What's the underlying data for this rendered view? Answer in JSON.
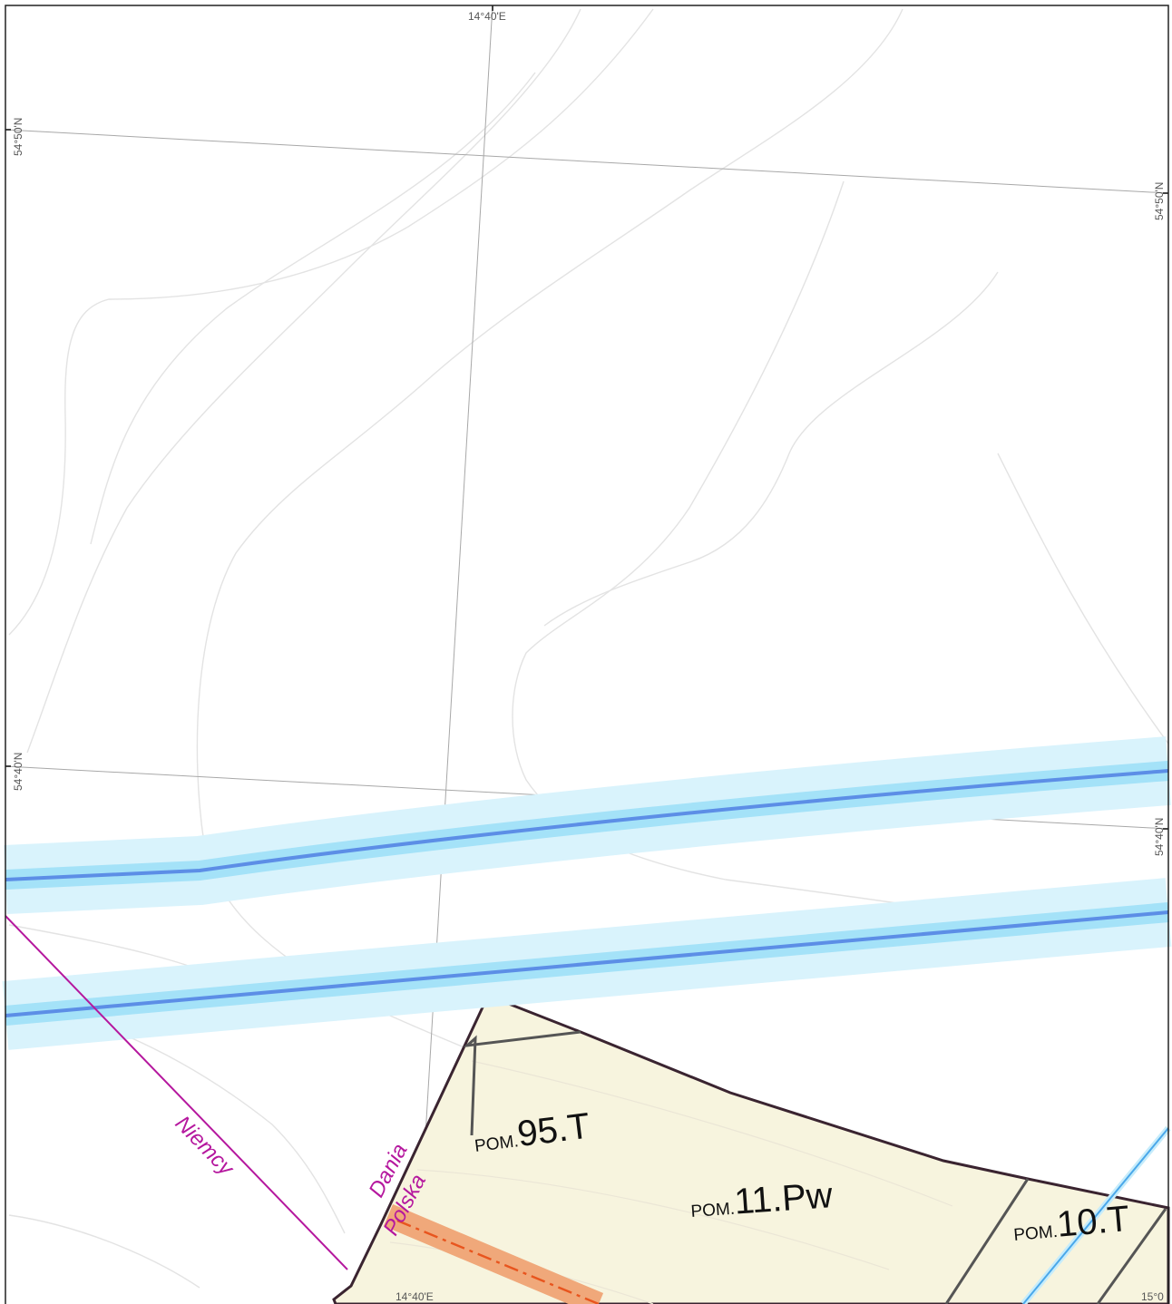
{
  "coordinate_labels": {
    "lon_top": "14°40'E",
    "lon_bottom": "14°40'E",
    "lon_bottom_right": "15°0",
    "lat_left_upper": "54°50'N",
    "lat_right_upper": "54°50'N",
    "lat_left_lower": "54°40'N",
    "lat_right_lower": "54°40'N"
  },
  "border_labels": {
    "niemcy": "Niemcy",
    "dania": "Dania",
    "polska": "Polska"
  },
  "areas": [
    {
      "prefix": "POM.",
      "code": "95.T"
    },
    {
      "prefix": "POM.",
      "code": "11.Pw"
    },
    {
      "prefix": "POM.",
      "code": "10.T"
    }
  ],
  "colors": {
    "area_fill": "#f7f4de",
    "area_outline": "#3a2430",
    "pipeline_buffer": "#d9f3fc",
    "pipeline_core": "#5c8ee6",
    "cable_buffer": "#f0a87a",
    "cable_line": "#e8551e",
    "border_line": "#b5179e"
  }
}
